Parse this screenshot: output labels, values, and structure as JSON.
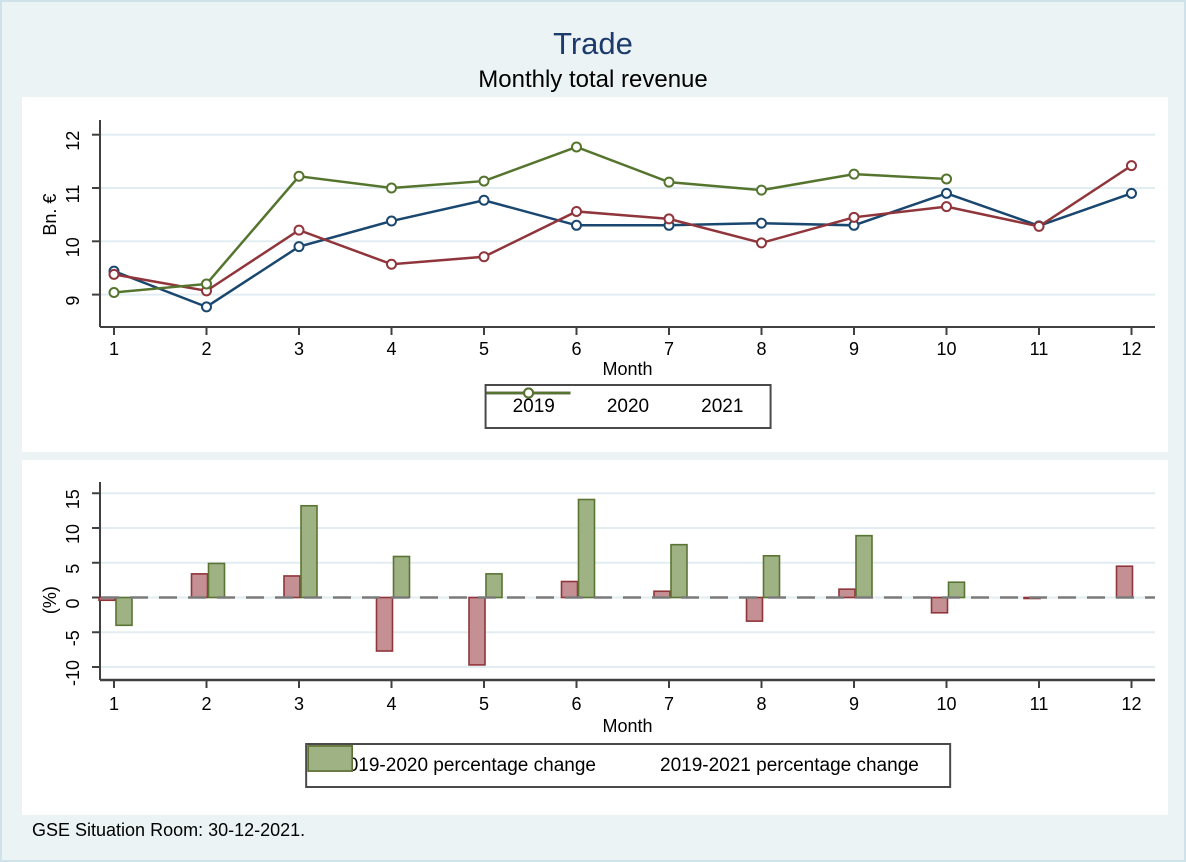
{
  "title": "Trade",
  "subtitle": "Monthly total revenue",
  "footer": "GSE Situation Room: 30-12-2021.",
  "colors": {
    "background": "#ebf3f5",
    "panel": "#ffffff",
    "gridline": "#e2edf2",
    "axis": "#404040",
    "zero_line": "#7a7a7a",
    "title": "#1d3a6d",
    "navy": "#1a476f",
    "maroon": "#90353b",
    "forest_green": "#55752f"
  },
  "chart_data": [
    {
      "type": "line",
      "title": "Monthly total revenue",
      "xlabel": "Month",
      "ylabel": "Bn. €",
      "x": [
        1,
        2,
        3,
        4,
        5,
        6,
        7,
        8,
        9,
        10,
        11,
        12
      ],
      "yticks": [
        9,
        10,
        11,
        12
      ],
      "ylim": [
        8.6,
        12.3
      ],
      "grid": true,
      "legend_position": "bottom-center",
      "series": [
        {
          "name": "2019",
          "color": "#1a476f",
          "values": [
            9.44,
            8.77,
            9.9,
            10.38,
            10.77,
            10.3,
            10.3,
            10.34,
            10.3,
            10.9,
            10.29,
            10.9
          ]
        },
        {
          "name": "2020",
          "color": "#90353b",
          "values": [
            9.38,
            9.07,
            10.21,
            9.57,
            9.71,
            10.56,
            10.42,
            9.97,
            10.45,
            10.65,
            10.28,
            11.42
          ]
        },
        {
          "name": "2021",
          "color": "#55752f",
          "values": [
            9.04,
            9.2,
            11.22,
            11.0,
            11.13,
            11.77,
            11.11,
            10.96,
            11.26,
            11.17,
            null,
            null
          ]
        }
      ]
    },
    {
      "type": "bar",
      "xlabel": "Month",
      "ylabel": "(%)",
      "categories": [
        1,
        2,
        3,
        4,
        5,
        6,
        7,
        8,
        9,
        10,
        11,
        12
      ],
      "yticks": [
        -10,
        -5,
        0,
        5,
        10,
        15
      ],
      "ylim": [
        -12,
        16.5
      ],
      "grid": true,
      "zero_line": "dashed",
      "legend_position": "bottom-center",
      "series": [
        {
          "name": "2019-2020 percentage change",
          "fill": "#c59094",
          "border": "#90353b",
          "values": [
            -0.4,
            3.4,
            3.1,
            -7.7,
            -9.7,
            2.3,
            0.9,
            -3.4,
            1.2,
            -2.2,
            -0.1,
            4.5
          ]
        },
        {
          "name": "2019-2021 percentage change",
          "fill": "#9fb284",
          "border": "#5a7433",
          "values": [
            -4.0,
            4.9,
            13.2,
            5.9,
            3.4,
            14.1,
            7.6,
            6.0,
            8.9,
            2.2,
            null,
            null
          ]
        }
      ]
    }
  ]
}
